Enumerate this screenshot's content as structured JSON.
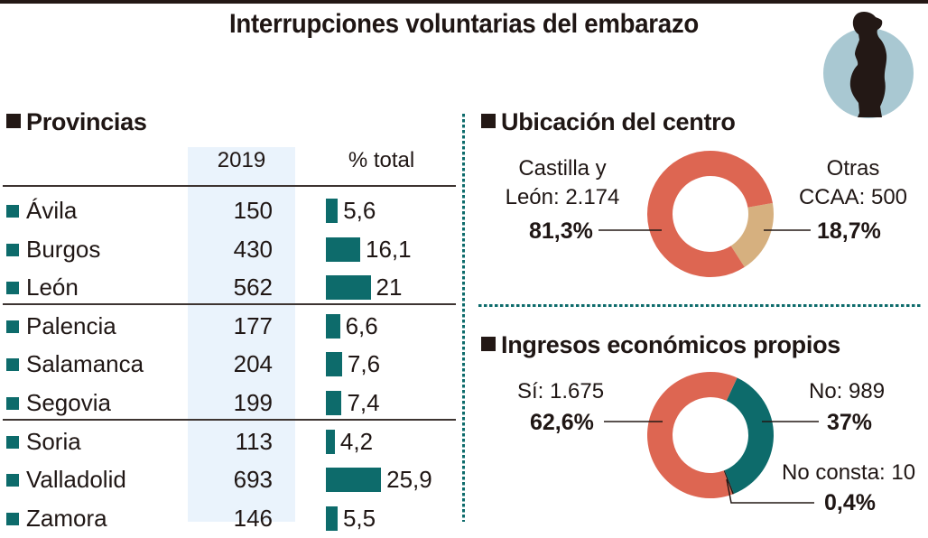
{
  "title": "Interrupciones voluntarias del embarazo",
  "provinces": {
    "section_title": "Provincias",
    "col_year": "2019",
    "col_pct": "% total",
    "rows": [
      {
        "name": "Ávila",
        "value": "150",
        "pct": "5,6",
        "pct_num": 5.6
      },
      {
        "name": "Burgos",
        "value": "430",
        "pct": "16,1",
        "pct_num": 16.1
      },
      {
        "name": "León",
        "value": "562",
        "pct": "21",
        "pct_num": 21
      },
      {
        "name": "Palencia",
        "value": "177",
        "pct": "6,6",
        "pct_num": 6.6
      },
      {
        "name": "Salamanca",
        "value": "204",
        "pct": "7,6",
        "pct_num": 7.6
      },
      {
        "name": "Segovia",
        "value": "199",
        "pct": "7,4",
        "pct_num": 7.4
      },
      {
        "name": "Soria",
        "value": "113",
        "pct": "4,2",
        "pct_num": 4.2
      },
      {
        "name": "Valladolid",
        "value": "693",
        "pct": "25,9",
        "pct_num": 25.9
      },
      {
        "name": "Zamora",
        "value": "146",
        "pct": "5,5",
        "pct_num": 5.5
      }
    ]
  },
  "location": {
    "section_title": "Ubicación del centro",
    "left_label_1": "Castilla y",
    "left_label_2": "León: 2.174",
    "left_pct": "81,3%",
    "right_label_1": "Otras",
    "right_label_2": "CCAA: 500",
    "right_pct": "18,7%"
  },
  "income": {
    "section_title": "Ingresos económicos propios",
    "yes_label": "Sí: 1.675",
    "yes_pct": "62,6%",
    "no_label": "No: 989",
    "no_pct": "37%",
    "nc_label": "No consta: 10",
    "nc_pct": "0,4%"
  },
  "colors": {
    "teal": "#0d6b6b",
    "coral": "#dd6652",
    "tan": "#d6b07f",
    "dark": "#231815",
    "icon_circle": "#a9c8d2",
    "column_band": "#eaf3fc"
  },
  "chart_data": [
    {
      "type": "bar",
      "title": "Provincias",
      "categories": [
        "Ávila",
        "Burgos",
        "León",
        "Palencia",
        "Salamanca",
        "Segovia",
        "Soria",
        "Valladolid",
        "Zamora"
      ],
      "series": [
        {
          "name": "2019",
          "values": [
            150,
            430,
            562,
            177,
            204,
            199,
            113,
            693,
            146
          ]
        },
        {
          "name": "% total",
          "values": [
            5.6,
            16.1,
            21,
            6.6,
            7.6,
            7.4,
            4.2,
            25.9,
            5.5
          ]
        }
      ]
    },
    {
      "type": "pie",
      "title": "Ubicación del centro",
      "categories": [
        "Castilla y León",
        "Otras CCAA"
      ],
      "values": [
        2174,
        500
      ],
      "percent": [
        81.3,
        18.7
      ]
    },
    {
      "type": "pie",
      "title": "Ingresos económicos propios",
      "categories": [
        "Sí",
        "No",
        "No consta"
      ],
      "values": [
        1675,
        989,
        10
      ],
      "percent": [
        62.6,
        37,
        0.4
      ]
    }
  ]
}
